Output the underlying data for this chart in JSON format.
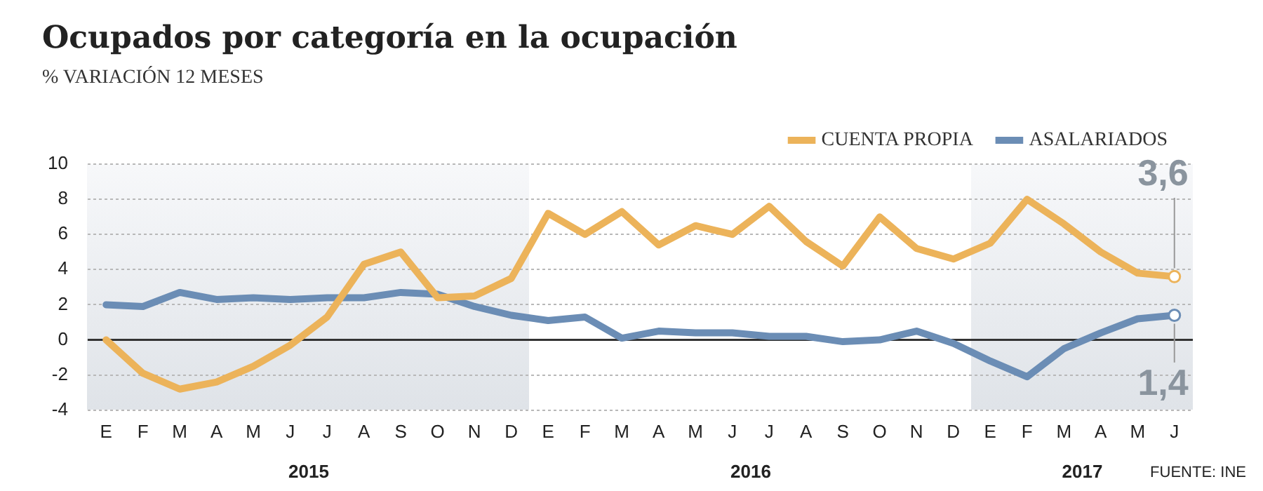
{
  "chart_data": {
    "type": "line",
    "title": "Ocupados por categoría en la ocupación",
    "subtitle": "% VARIACIÓN 12 MESES",
    "categories": [
      "E",
      "F",
      "M",
      "A",
      "M",
      "J",
      "J",
      "A",
      "S",
      "O",
      "N",
      "D",
      "E",
      "F",
      "M",
      "A",
      "M",
      "J",
      "J",
      "A",
      "S",
      "O",
      "N",
      "D",
      "E",
      "F",
      "M",
      "A",
      "M",
      "J"
    ],
    "series": [
      {
        "name": "CUENTA PROPIA",
        "color": "#ecb35a",
        "values": [
          0,
          -1.9,
          -2.8,
          -2.4,
          -1.5,
          -0.3,
          1.3,
          4.3,
          5.0,
          2.4,
          2.5,
          3.5,
          7.2,
          6.0,
          7.3,
          5.4,
          6.5,
          6.0,
          7.6,
          5.6,
          4.2,
          7.0,
          5.2,
          4.6,
          5.5,
          8.0,
          6.6,
          5.0,
          3.8,
          3.6
        ],
        "value_labels": [
          null,
          null,
          null,
          null,
          null,
          null,
          null,
          null,
          null,
          null,
          null,
          null,
          null,
          null,
          null,
          null,
          null,
          null,
          null,
          null,
          null,
          null,
          null,
          null,
          null,
          null,
          null,
          null,
          null,
          "3,6"
        ]
      },
      {
        "name": "ASALARIADOS",
        "color": "#6b8db5",
        "values": [
          2.0,
          1.9,
          2.7,
          2.3,
          2.4,
          2.3,
          2.4,
          2.4,
          2.7,
          2.6,
          1.9,
          1.4,
          1.1,
          1.3,
          0.1,
          0.5,
          0.4,
          0.4,
          0.2,
          0.2,
          -0.1,
          0.0,
          0.5,
          -0.2,
          -1.2,
          -2.1,
          -0.5,
          0.4,
          1.2,
          1.4
        ],
        "value_labels": [
          null,
          null,
          null,
          null,
          null,
          null,
          null,
          null,
          null,
          null,
          null,
          null,
          null,
          null,
          null,
          null,
          null,
          null,
          null,
          null,
          null,
          null,
          null,
          null,
          null,
          null,
          null,
          null,
          null,
          "1,4"
        ]
      }
    ],
    "ylim": [
      -4,
      10
    ],
    "yticks": [
      -4,
      -2,
      0,
      2,
      4,
      6,
      8,
      10
    ],
    "grid": "y",
    "legend": "top right",
    "marker": "none",
    "line_style": "solid",
    "ref_lines": [
      {
        "axis": "y",
        "value": 0,
        "color": "#333333"
      }
    ],
    "annotations": [
      "2015",
      "2016",
      "2017",
      "FUENTE: INE"
    ]
  }
}
